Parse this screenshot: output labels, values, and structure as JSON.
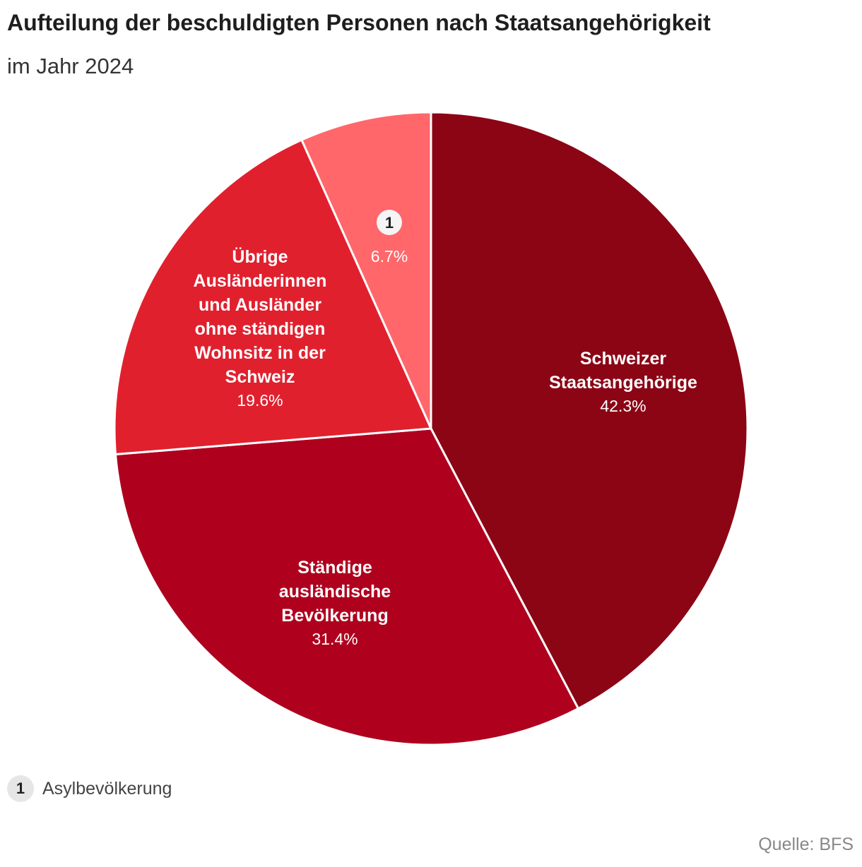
{
  "header": {
    "title": "Aufteilung der beschuldigten Personen nach Staatsangehörigkeit",
    "subtitle": "im Jahr 2024"
  },
  "chart_data": {
    "type": "pie",
    "title": "Aufteilung der beschuldigten Personen nach Staatsangehörigkeit",
    "subtitle": "im Jahr 2024",
    "unit": "%",
    "slices": [
      {
        "label": [
          "Schweizer",
          "Staatsangehörige"
        ],
        "value": 42.3,
        "display": "42.3%",
        "color": "#8b0515"
      },
      {
        "label": [
          "Ständige",
          "ausländische",
          "Bevölkerung"
        ],
        "value": 31.4,
        "display": "31.4%",
        "color": "#af001e"
      },
      {
        "label": [
          "Übrige",
          "Ausländerinnen",
          "und Ausländer",
          "ohne ständigen",
          "Wohnsitz in der",
          "Schweiz"
        ],
        "value": 19.6,
        "display": "19.6%",
        "color": "#e1202e"
      },
      {
        "label": [],
        "badge": "1",
        "value": 6.7,
        "display": "6.7%",
        "color": "#ff676b"
      }
    ],
    "footnotes": [
      {
        "marker": "1",
        "text": "Asylbevölkerung"
      }
    ]
  },
  "footer": {
    "source": "Quelle: BFS"
  }
}
